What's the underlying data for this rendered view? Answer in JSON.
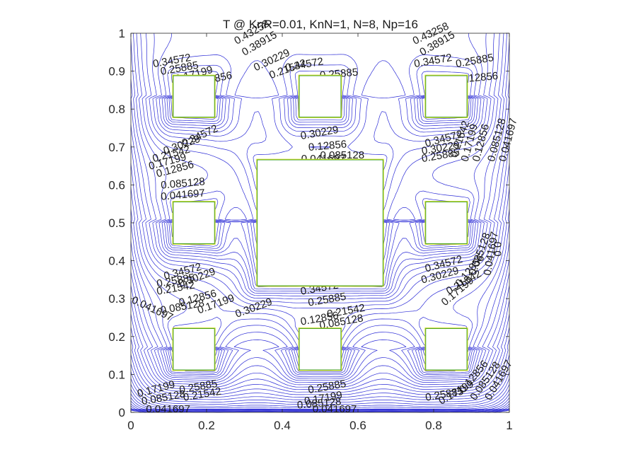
{
  "chart_data": {
    "type": "contour",
    "title": "T @ KnR=0.01, KnN=1, N=8, Np=16",
    "xlabel": "",
    "ylabel": "",
    "xlim": [
      0,
      1
    ],
    "ylim": [
      0,
      1
    ],
    "x_ticks": [
      0,
      0.2,
      0.4,
      0.6,
      0.8,
      1
    ],
    "y_ticks": [
      0,
      0.1,
      0.2,
      0.3,
      0.4,
      0.5,
      0.6,
      0.7,
      0.8,
      0.9,
      1
    ],
    "x_tick_labels": [
      "0",
      "0.2",
      "0.4",
      "0.6",
      "0.8",
      "1"
    ],
    "y_tick_labels": [
      "0",
      "0.1",
      "0.2",
      "0.3",
      "0.4",
      "0.5",
      "0.6",
      "0.7",
      "0.8",
      "0.9",
      "1"
    ],
    "grid": false,
    "contour_levels": [
      0.041697,
      0.085128,
      0.12856,
      0.17199,
      0.21542,
      0.25885,
      0.30229,
      0.34572,
      0.38915,
      0.43258
    ],
    "obstacles": [
      {
        "x": [
          0.111,
          0.222
        ],
        "y": [
          0.778,
          0.889
        ]
      },
      {
        "x": [
          0.444,
          0.556
        ],
        "y": [
          0.778,
          0.889
        ]
      },
      {
        "x": [
          0.778,
          0.889
        ],
        "y": [
          0.778,
          0.889
        ]
      },
      {
        "x": [
          0.111,
          0.222
        ],
        "y": [
          0.444,
          0.556
        ]
      },
      {
        "x": [
          0.333,
          0.667
        ],
        "y": [
          0.333,
          0.667
        ]
      },
      {
        "x": [
          0.778,
          0.889
        ],
        "y": [
          0.444,
          0.556
        ]
      },
      {
        "x": [
          0.111,
          0.222
        ],
        "y": [
          0.111,
          0.222
        ]
      },
      {
        "x": [
          0.444,
          0.556
        ],
        "y": [
          0.111,
          0.222
        ]
      },
      {
        "x": [
          0.778,
          0.889
        ],
        "y": [
          0.111,
          0.222
        ]
      }
    ],
    "contour_labels": [
      {
        "text": "0.34572",
        "x": 0.06,
        "y": 0.91,
        "angle": -10
      },
      {
        "text": "0.25885",
        "x": 0.08,
        "y": 0.89,
        "angle": -10
      },
      {
        "text": "0.17199",
        "x": 0.12,
        "y": 0.87,
        "angle": -15
      },
      {
        "text": "0.12856",
        "x": 0.17,
        "y": 0.86,
        "angle": -12
      },
      {
        "text": "0.43258",
        "x": 0.28,
        "y": 0.97,
        "angle": -30
      },
      {
        "text": "0.38915",
        "x": 0.3,
        "y": 0.94,
        "angle": -30
      },
      {
        "text": "0.30229",
        "x": 0.33,
        "y": 0.9,
        "angle": -25
      },
      {
        "text": "0.21542",
        "x": 0.37,
        "y": 0.88,
        "angle": -20
      },
      {
        "text": "0.34572",
        "x": 0.41,
        "y": 0.9,
        "angle": -10
      },
      {
        "text": "0.25885",
        "x": 0.5,
        "y": 0.88,
        "angle": -5
      },
      {
        "text": "0.43258",
        "x": 0.75,
        "y": 0.97,
        "angle": -25
      },
      {
        "text": "0.38915",
        "x": 0.77,
        "y": 0.94,
        "angle": -30
      },
      {
        "text": "0.34572",
        "x": 0.75,
        "y": 0.91,
        "angle": -10
      },
      {
        "text": "0.25885",
        "x": 0.86,
        "y": 0.91,
        "angle": -10
      },
      {
        "text": "0.12856",
        "x": 0.87,
        "y": 0.87,
        "angle": -5
      },
      {
        "text": "0.34572",
        "x": 0.14,
        "y": 0.7,
        "angle": -25
      },
      {
        "text": "0.30229",
        "x": 0.09,
        "y": 0.68,
        "angle": -20
      },
      {
        "text": "0.21542",
        "x": 0.06,
        "y": 0.66,
        "angle": -15
      },
      {
        "text": "0.17199",
        "x": 0.05,
        "y": 0.64,
        "angle": -15
      },
      {
        "text": "0.12856",
        "x": 0.07,
        "y": 0.62,
        "angle": -15
      },
      {
        "text": "0.085128",
        "x": 0.08,
        "y": 0.59,
        "angle": -5
      },
      {
        "text": "0.041697",
        "x": 0.08,
        "y": 0.56,
        "angle": -5
      },
      {
        "text": "0.30229",
        "x": 0.45,
        "y": 0.72,
        "angle": -10
      },
      {
        "text": "0.12856",
        "x": 0.47,
        "y": 0.69,
        "angle": -5
      },
      {
        "text": "0.085128",
        "x": 0.5,
        "y": 0.67,
        "angle": 0
      },
      {
        "text": "0.041697",
        "x": 0.45,
        "y": 0.66,
        "angle": 0
      },
      {
        "text": "0.34572",
        "x": 0.78,
        "y": 0.7,
        "angle": -15
      },
      {
        "text": "0.30229",
        "x": 0.77,
        "y": 0.68,
        "angle": -10
      },
      {
        "text": "0.25885",
        "x": 0.77,
        "y": 0.66,
        "angle": -10
      },
      {
        "text": "0.21542",
        "x": 0.86,
        "y": 0.67,
        "angle": -70
      },
      {
        "text": "0.17199",
        "x": 0.89,
        "y": 0.66,
        "angle": -75
      },
      {
        "text": "0.12856",
        "x": 0.92,
        "y": 0.66,
        "angle": -75
      },
      {
        "text": "0.085128",
        "x": 0.96,
        "y": 0.66,
        "angle": -75
      },
      {
        "text": "0.041697",
        "x": 0.99,
        "y": 0.66,
        "angle": -75
      },
      {
        "text": "0.34572",
        "x": 0.09,
        "y": 0.35,
        "angle": -15
      },
      {
        "text": "0.30229",
        "x": 0.13,
        "y": 0.33,
        "angle": -20
      },
      {
        "text": "0.25885",
        "x": 0.07,
        "y": 0.33,
        "angle": -10
      },
      {
        "text": "0.21542",
        "x": 0.07,
        "y": 0.31,
        "angle": -10
      },
      {
        "text": "0.041697",
        "x": 0.0,
        "y": 0.29,
        "angle": 25
      },
      {
        "text": "0.085128",
        "x": 0.08,
        "y": 0.26,
        "angle": -10
      },
      {
        "text": "0.12856",
        "x": 0.13,
        "y": 0.28,
        "angle": -15
      },
      {
        "text": "0.17199",
        "x": 0.18,
        "y": 0.26,
        "angle": -20
      },
      {
        "text": "0.30229",
        "x": 0.28,
        "y": 0.25,
        "angle": -20
      },
      {
        "text": "0.34572",
        "x": 0.45,
        "y": 0.31,
        "angle": -10
      },
      {
        "text": "0.25885",
        "x": 0.47,
        "y": 0.28,
        "angle": -10
      },
      {
        "text": "0.21542",
        "x": 0.52,
        "y": 0.25,
        "angle": -10
      },
      {
        "text": "0.12856",
        "x": 0.45,
        "y": 0.23,
        "angle": -10
      },
      {
        "text": "0.085128",
        "x": 0.5,
        "y": 0.22,
        "angle": -10
      },
      {
        "text": "0.34572",
        "x": 0.78,
        "y": 0.37,
        "angle": -15
      },
      {
        "text": "0.30229",
        "x": 0.77,
        "y": 0.34,
        "angle": -15
      },
      {
        "text": "0.21542",
        "x": 0.84,
        "y": 0.31,
        "angle": -30
      },
      {
        "text": "0.17199",
        "x": 0.83,
        "y": 0.28,
        "angle": -40
      },
      {
        "text": "0.12856",
        "x": 0.87,
        "y": 0.33,
        "angle": -50
      },
      {
        "text": "0.085128",
        "x": 0.91,
        "y": 0.36,
        "angle": -70
      },
      {
        "text": "0.041697",
        "x": 0.95,
        "y": 0.36,
        "angle": -80
      },
      {
        "text": "0.0",
        "x": 0.96,
        "y": 0.45,
        "angle": 90
      },
      {
        "text": "0.17199",
        "x": 0.02,
        "y": 0.04,
        "angle": -15
      },
      {
        "text": "0.085128",
        "x": 0.03,
        "y": 0.02,
        "angle": -10
      },
      {
        "text": "0.25885",
        "x": 0.13,
        "y": 0.05,
        "angle": -10
      },
      {
        "text": "0.21542",
        "x": 0.14,
        "y": 0.03,
        "angle": -10
      },
      {
        "text": "0.041697",
        "x": 0.04,
        "y": 0.0,
        "angle": 0
      },
      {
        "text": "0.25885",
        "x": 0.47,
        "y": 0.05,
        "angle": -10
      },
      {
        "text": "0.17199",
        "x": 0.46,
        "y": 0.02,
        "angle": -10
      },
      {
        "text": "0.085128",
        "x": 0.44,
        "y": 0.01,
        "angle": -5
      },
      {
        "text": "0.041697",
        "x": 0.48,
        "y": 0.0,
        "angle": 0
      },
      {
        "text": "0.25885",
        "x": 0.78,
        "y": 0.03,
        "angle": -10
      },
      {
        "text": "0.17199",
        "x": 0.82,
        "y": 0.02,
        "angle": -30
      },
      {
        "text": "0.12856",
        "x": 0.88,
        "y": 0.05,
        "angle": -50
      },
      {
        "text": "0.085128",
        "x": 0.91,
        "y": 0.03,
        "angle": -55
      },
      {
        "text": "0.041697",
        "x": 0.95,
        "y": 0.03,
        "angle": -60
      }
    ]
  },
  "colors": {
    "contour": "#2b2bd6",
    "obstacle_outer": "#ccd81a",
    "obstacle_inner": "#2f9a2f",
    "axes": "#262626"
  }
}
